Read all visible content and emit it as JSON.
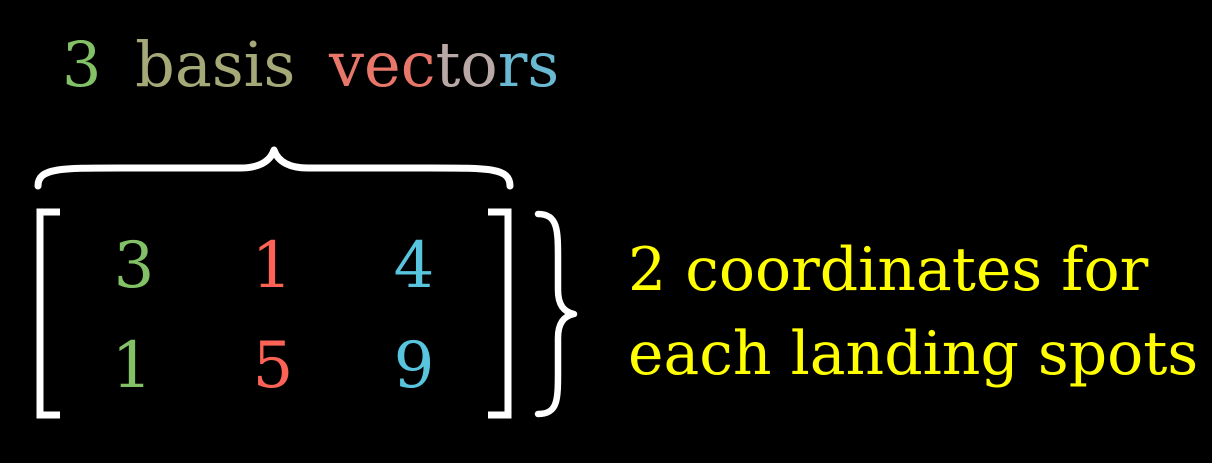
{
  "title": {
    "number": "3",
    "word_basis": "basis",
    "word_vectors_part1": "vec",
    "word_vectors_part2": "to",
    "word_vectors_part3": "rs"
  },
  "matrix": {
    "rows": [
      [
        "3",
        "1",
        "4"
      ],
      [
        "1",
        "5",
        "9"
      ]
    ]
  },
  "annotation": {
    "line1": "2 coordinates for",
    "line2": "each landing spots"
  },
  "colors": {
    "background": "#000000",
    "column_1": "#83c167",
    "column_2": "#fc6255",
    "column_3": "#58c4dd",
    "title_basis": "#a5a877",
    "title_vectors_mid": "#c0a7a0",
    "annotation": "#ffff00",
    "brackets": "#ffffff"
  }
}
